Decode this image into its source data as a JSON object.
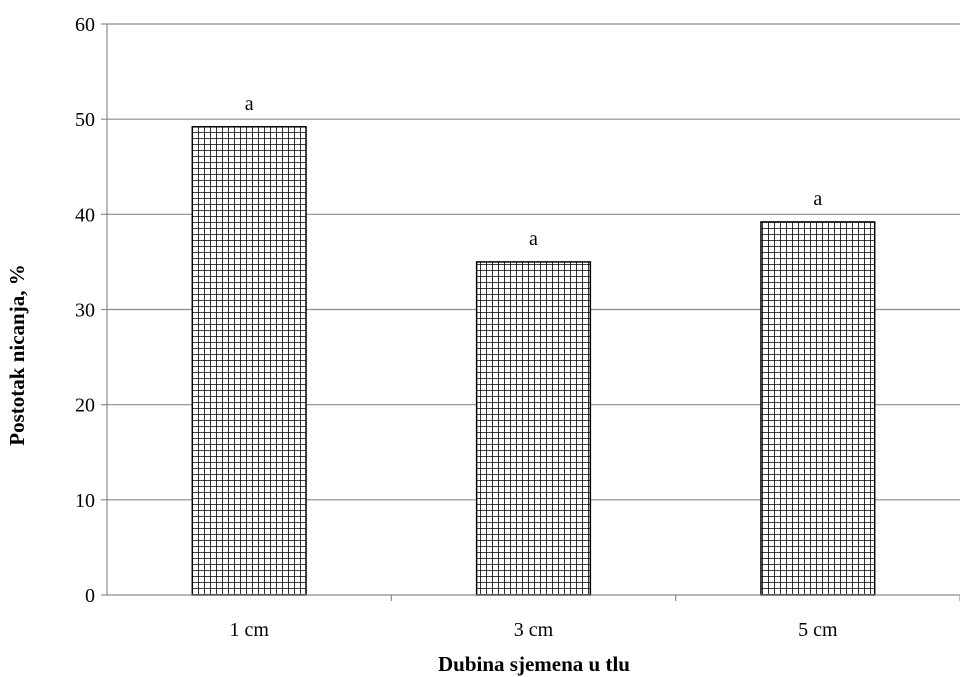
{
  "chart_data": {
    "type": "bar",
    "title": "",
    "xlabel": "Dubina sjemena u tlu",
    "ylabel": "Postotak nicanja, %",
    "categories": [
      "1 cm",
      "3 cm",
      "5 cm"
    ],
    "series": [
      {
        "values": [
          49.2,
          35.0,
          39.2
        ],
        "labels": [
          "a",
          "a",
          "a"
        ]
      }
    ],
    "ylim": [
      0,
      60
    ],
    "yticks": [
      0,
      10,
      20,
      30,
      40,
      50,
      60
    ],
    "grid": true,
    "legend": "none",
    "bar_pattern": "grid-hatch",
    "colors": {
      "bar_fill": "#ffffff",
      "bar_pattern": "#000000",
      "gridline": "#8c8c8c",
      "axis": "#8c8c8c"
    }
  }
}
